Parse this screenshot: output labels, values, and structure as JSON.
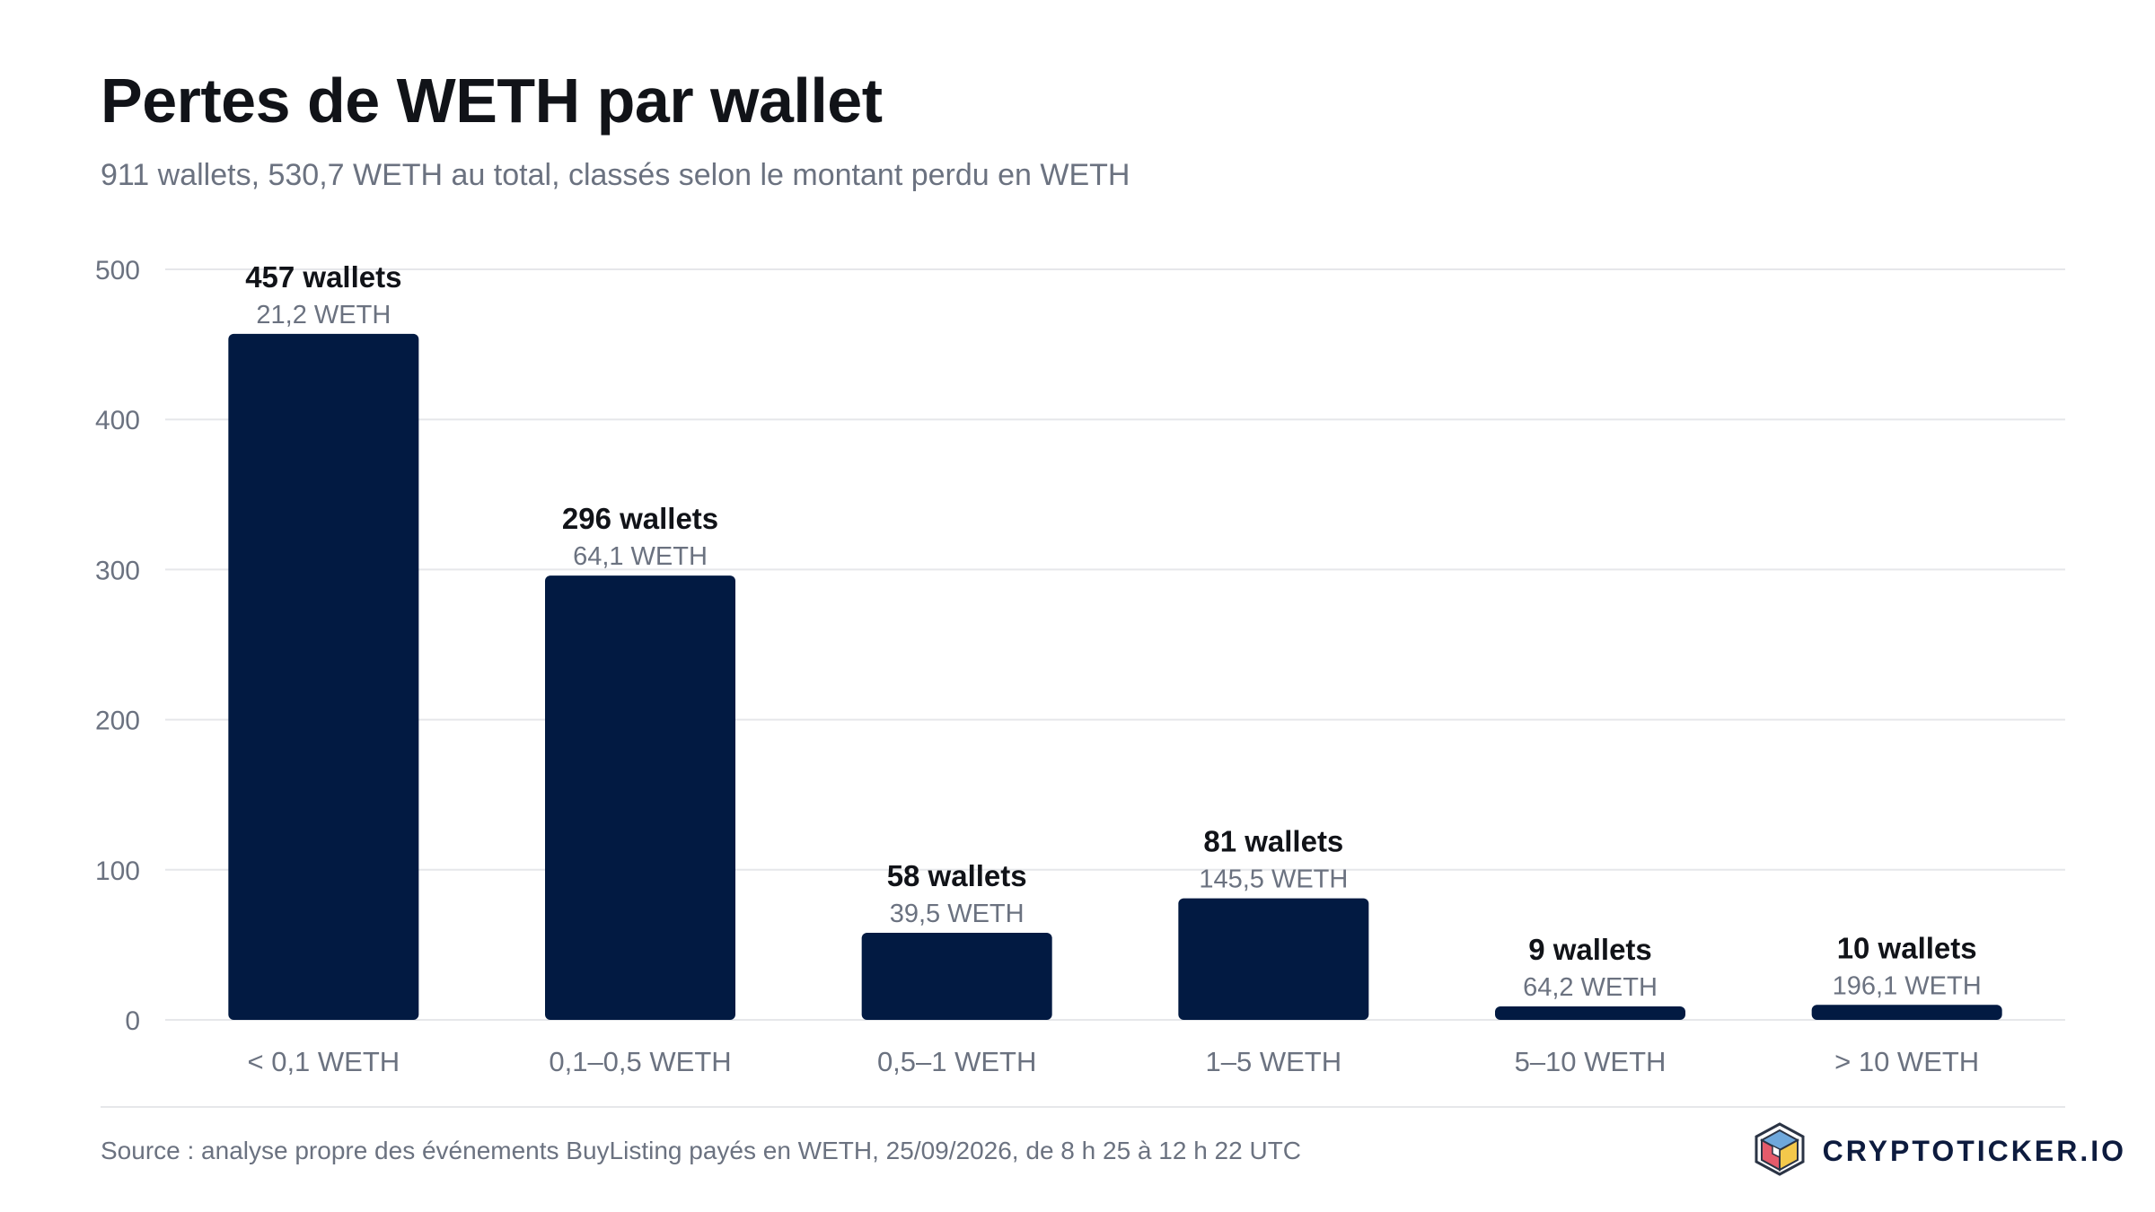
{
  "header": {
    "title": "Pertes de WETH par wallet",
    "subtitle": "911 wallets, 530,7 WETH au total, classés selon le montant perdu en WETH"
  },
  "footer": {
    "source": "Source : analyse propre des événements BuyListing payés en WETH, 25/09/2026, de 8 h 25 à 12 h 22 UTC",
    "brand": "CRYPTOTICKER.IO",
    "brand_icon": "cube-logo-icon"
  },
  "colors": {
    "bar": "#021a42",
    "grid": "#e6e7ea",
    "text_dark": "#111318",
    "text_muted": "#6b7280"
  },
  "chart_data": {
    "type": "bar",
    "categories": [
      "< 0,1 WETH",
      "0,1–0,5 WETH",
      "0,5–1 WETH",
      "1–5 WETH",
      "5–10 WETH",
      "> 10 WETH"
    ],
    "values": [
      457,
      296,
      58,
      81,
      9,
      10
    ],
    "value_labels": [
      "457 wallets",
      "296 wallets",
      "58 wallets",
      "81 wallets",
      "9 wallets",
      "10 wallets"
    ],
    "secondary_labels": [
      "21,2 WETH",
      "64,1 WETH",
      "39,5 WETH",
      "145,5 WETH",
      "64,2 WETH",
      "196,1 WETH"
    ],
    "yticks": [
      0,
      100,
      200,
      300,
      400,
      500
    ],
    "ylim": [
      0,
      500
    ],
    "grid": true,
    "xlabel": "",
    "ylabel": ""
  }
}
